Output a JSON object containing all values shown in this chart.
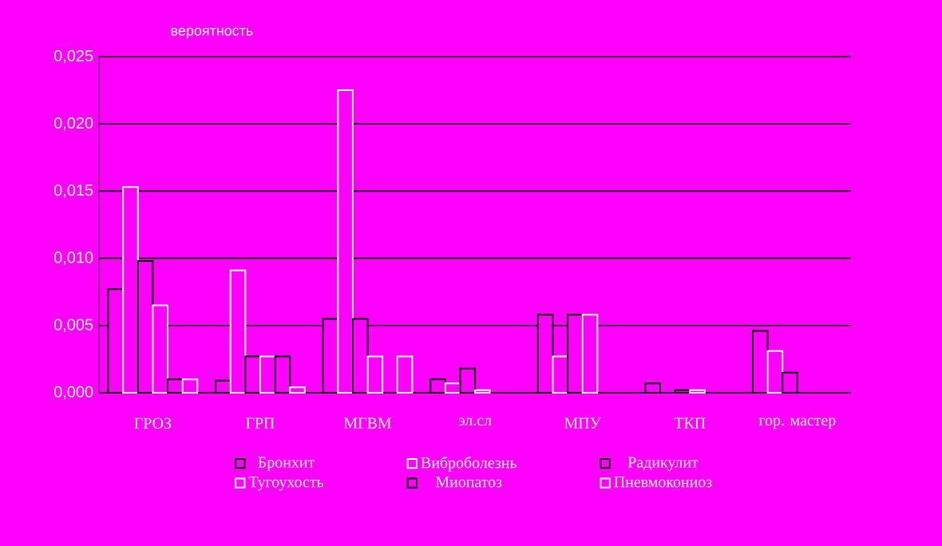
{
  "chart_data": {
    "type": "bar",
    "ylabel": "вероятность",
    "categories": [
      "ГРОЗ",
      "ГРП",
      "МГВМ",
      "эл.сл",
      "МПУ",
      "ТКП",
      "гор. мастер"
    ],
    "series": [
      {
        "name": "Бронхит",
        "color": "#000000",
        "values": [
          0.0077,
          0.0009,
          0.0055,
          0.001,
          0.0058,
          0.0007,
          0.0046
        ]
      },
      {
        "name": "Виброболезнь",
        "color": "#ffffff",
        "values": [
          0.0153,
          0.0091,
          0.0225,
          0.0007,
          0.0027,
          null,
          0.0031
        ]
      },
      {
        "name": "Радикулит",
        "color": "#000000",
        "values": [
          0.0098,
          0.0027,
          0.0055,
          0.0018,
          0.0058,
          0.0002,
          0.0015
        ]
      },
      {
        "name": "Тугоухость",
        "color": "#ffffff",
        "values": [
          0.0065,
          0.0027,
          0.0027,
          0.0002,
          0.0058,
          0.0002,
          null
        ]
      },
      {
        "name": "Миопатоз",
        "color": "#000000",
        "values": [
          0.001,
          0.0027,
          null,
          null,
          null,
          null,
          null
        ]
      },
      {
        "name": "Пневмокониоз",
        "color": "#ffffff",
        "values": [
          0.001,
          0.0004,
          0.0027,
          null,
          null,
          null,
          null
        ]
      }
    ],
    "ylim": [
      0,
      0.025
    ],
    "yticks": [
      {
        "value": 0,
        "label": "0,000"
      },
      {
        "value": 0.005,
        "label": "0,005"
      },
      {
        "value": 0.01,
        "label": "0,010"
      },
      {
        "value": 0.015,
        "label": "0,015"
      },
      {
        "value": 0.02,
        "label": "0,020"
      },
      {
        "value": 0.025,
        "label": "0,025"
      }
    ],
    "grid": "y",
    "legend": "bottom"
  }
}
